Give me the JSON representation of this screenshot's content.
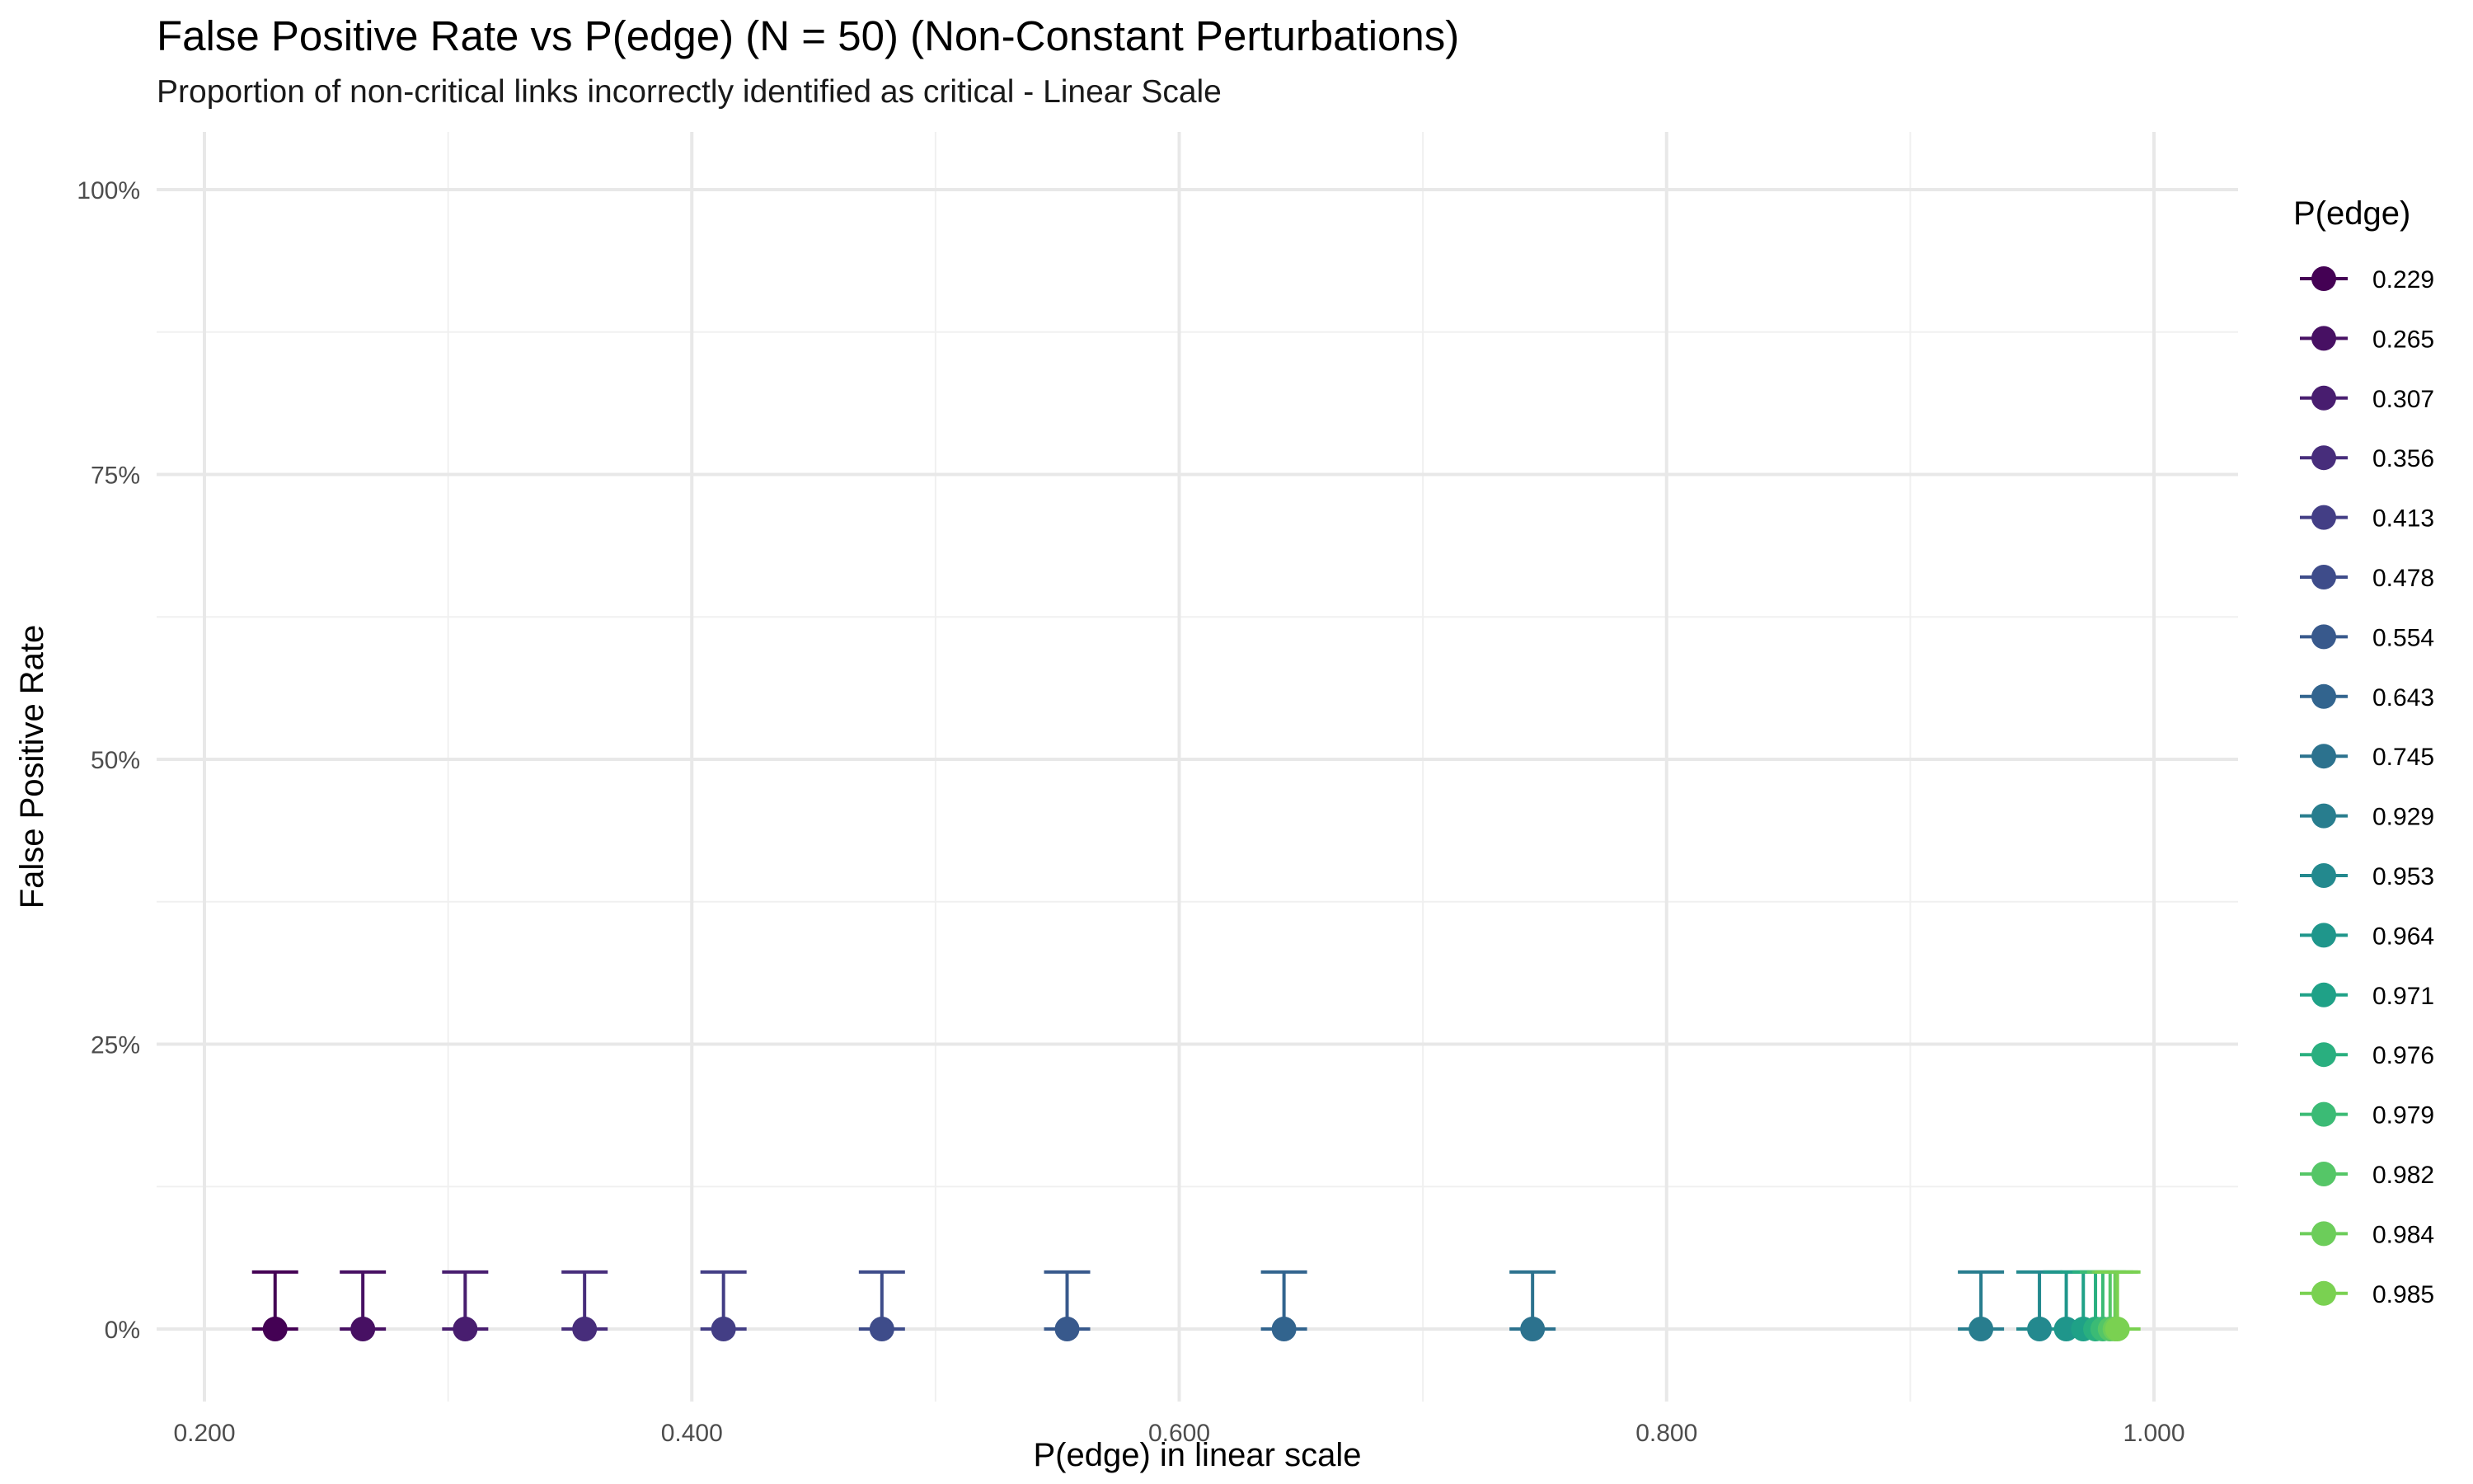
{
  "chart_data": {
    "type": "scatter",
    "title": "False Positive Rate vs P(edge) (N = 50) (Non-Constant Perturbations)",
    "subtitle": "Proportion of non-critical links incorrectly identified as critical - Linear Scale",
    "xlabel": "P(edge) in linear scale",
    "ylabel": "False Positive Rate",
    "xlim": [
      0.18,
      1.03
    ],
    "ylim": [
      -0.05,
      1.05
    ],
    "x_ticks": [
      0.2,
      0.4,
      0.6,
      0.8,
      1.0
    ],
    "x_tick_labels": [
      "0.200",
      "0.400",
      "0.600",
      "0.800",
      "1.000"
    ],
    "y_ticks": [
      0,
      0.25,
      0.5,
      0.75,
      1.0
    ],
    "y_tick_labels": [
      "0%",
      "25%",
      "50%",
      "75%",
      "100%"
    ],
    "grid": true,
    "legend": {
      "title": "P(edge)",
      "position": "right"
    },
    "error_bars": {
      "upper": 0.05,
      "lower": 0.0
    },
    "series": [
      {
        "name": "0.229",
        "x": 0.229,
        "y": 0,
        "color": "#440154"
      },
      {
        "name": "0.265",
        "x": 0.265,
        "y": 0,
        "color": "#471063"
      },
      {
        "name": "0.307",
        "x": 0.307,
        "y": 0,
        "color": "#481d6f"
      },
      {
        "name": "0.356",
        "x": 0.356,
        "y": 0,
        "color": "#472d7b"
      },
      {
        "name": "0.413",
        "x": 0.413,
        "y": 0,
        "color": "#433e85"
      },
      {
        "name": "0.478",
        "x": 0.478,
        "y": 0,
        "color": "#3e4c8a"
      },
      {
        "name": "0.554",
        "x": 0.554,
        "y": 0,
        "color": "#38598c"
      },
      {
        "name": "0.643",
        "x": 0.643,
        "y": 0,
        "color": "#32648e"
      },
      {
        "name": "0.745",
        "x": 0.745,
        "y": 0,
        "color": "#2c728e"
      },
      {
        "name": "0.929",
        "x": 0.929,
        "y": 0,
        "color": "#287d8e"
      },
      {
        "name": "0.953",
        "x": 0.953,
        "y": 0,
        "color": "#23898e"
      },
      {
        "name": "0.964",
        "x": 0.964,
        "y": 0,
        "color": "#1f968b"
      },
      {
        "name": "0.971",
        "x": 0.971,
        "y": 0,
        "color": "#1fa187"
      },
      {
        "name": "0.976",
        "x": 0.976,
        "y": 0,
        "color": "#29af7f"
      },
      {
        "name": "0.979",
        "x": 0.979,
        "y": 0,
        "color": "#3bbb75"
      },
      {
        "name": "0.982",
        "x": 0.982,
        "y": 0,
        "color": "#55c667"
      },
      {
        "name": "0.984",
        "x": 0.984,
        "y": 0,
        "color": "#6ccd5a"
      },
      {
        "name": "0.985",
        "x": 0.985,
        "y": 0,
        "color": "#7ad151"
      }
    ]
  }
}
